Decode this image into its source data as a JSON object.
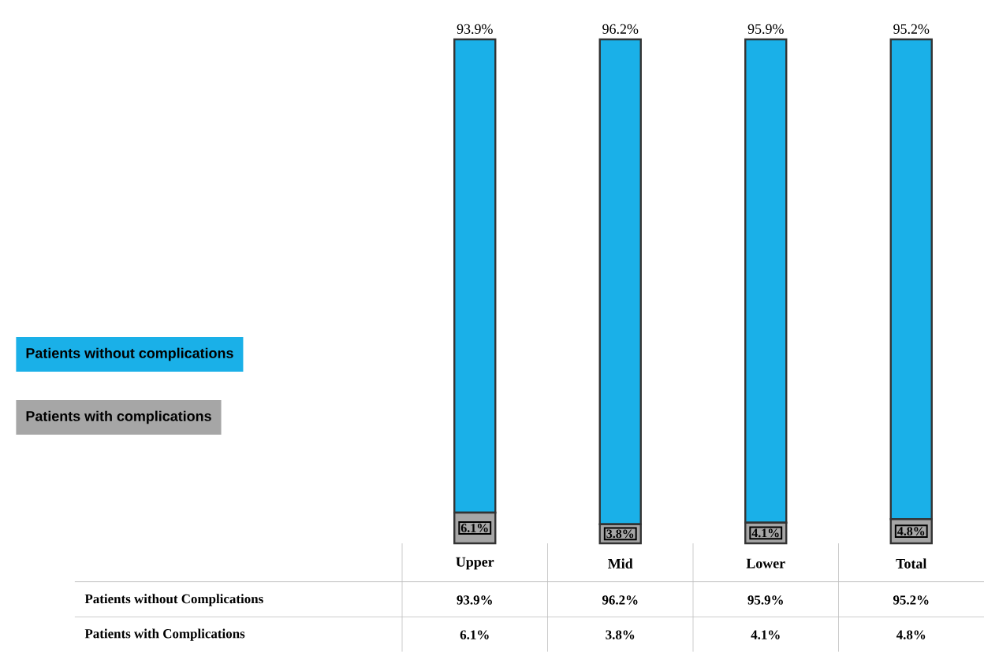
{
  "chart_data": {
    "type": "bar",
    "stacked": true,
    "data_labels": true,
    "legend": "left",
    "categories": [
      "Upper",
      "Mid",
      "Lower",
      "Total"
    ],
    "series": [
      {
        "name": "Patients with complications",
        "color": "#a6a6a6",
        "values": [
          6.1,
          3.8,
          4.1,
          4.8
        ],
        "value_labels": [
          "6.1%",
          "3.8%",
          "4.1%",
          "4.8%"
        ]
      },
      {
        "name": "Patients without complications",
        "color": "#1ab0e8",
        "values": [
          93.9,
          96.2,
          95.9,
          95.2
        ],
        "value_labels": [
          "93.9%",
          "96.2%",
          "95.9%",
          "95.2%"
        ]
      }
    ],
    "annotations": [
      "Patients without Complications",
      "Patients with Complications"
    ]
  }
}
